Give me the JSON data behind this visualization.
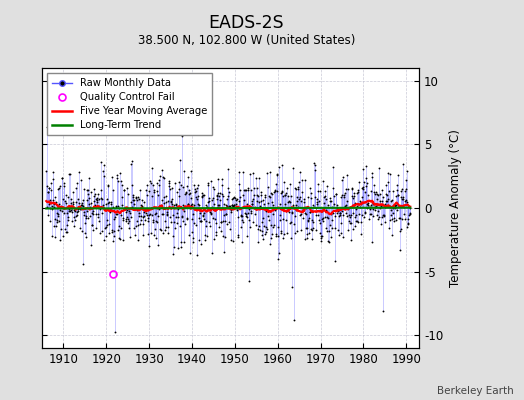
{
  "title": "EADS-2S",
  "subtitle": "38.500 N, 102.800 W (United States)",
  "ylabel": "Temperature Anomaly (°C)",
  "xlim": [
    1905,
    1993
  ],
  "ylim": [
    -11,
    11
  ],
  "yticks": [
    -10,
    -5,
    0,
    5,
    10
  ],
  "xticks": [
    1910,
    1920,
    1930,
    1940,
    1950,
    1960,
    1970,
    1980,
    1990
  ],
  "bg_color": "#e0e0e0",
  "plot_bg_color": "#ffffff",
  "raw_line_color": "#5555ff",
  "raw_marker_color": "black",
  "raw_line_alpha": 0.55,
  "ma_color": "red",
  "trend_color": "green",
  "qc_color": "magenta",
  "watermark": "Berkeley Earth",
  "seed": 137,
  "start_year": 1906.0,
  "n_months": 1020,
  "std_base": 1.6,
  "qc_x": 1921.5,
  "qc_y": -5.2
}
